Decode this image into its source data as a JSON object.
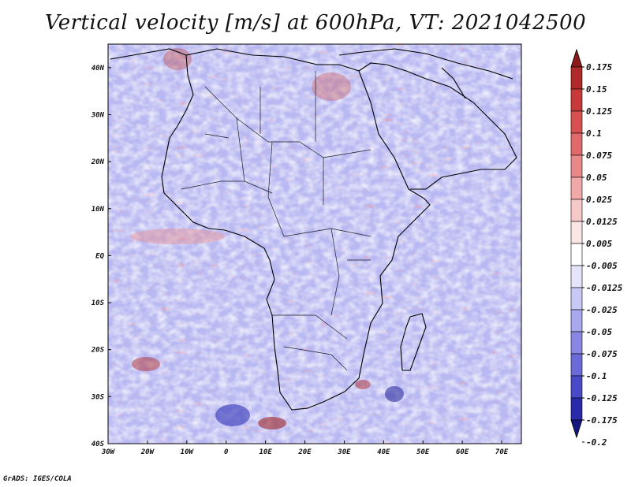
{
  "title": "Vertical velocity [m/s] at 600hPa, VT: 2021042500",
  "footer": "GrADS: IGES/COLA",
  "map": {
    "region": "Africa",
    "lon_labels": [
      "30W",
      "20W",
      "10W",
      "0",
      "10E",
      "20E",
      "30E",
      "40E",
      "50E",
      "60E",
      "70E"
    ],
    "lat_labels": [
      "40N",
      "30N",
      "20N",
      "10N",
      "EQ",
      "10S",
      "20S",
      "30S",
      "40S"
    ],
    "lon_range": [
      -30,
      75
    ],
    "lat_range": [
      -40,
      45
    ]
  },
  "colorbar": {
    "labels": [
      "0.175",
      "0.15",
      "0.125",
      "0.1",
      "0.075",
      "0.05",
      "0.025",
      "0.0125",
      "0.005",
      "-0.005",
      "-0.0125",
      "-0.025",
      "-0.05",
      "-0.075",
      "-0.1",
      "-0.125",
      "-0.175",
      "-0.2"
    ],
    "colors": [
      "#8b1a1a",
      "#b02a2a",
      "#c83a3a",
      "#d85050",
      "#e06a6a",
      "#e88888",
      "#f0a8a8",
      "#f6c8c8",
      "#fbe6e6",
      "#ffffff",
      "#e4e4fb",
      "#c8c8f4",
      "#a8a8ee",
      "#8888e4",
      "#6a6ad8",
      "#4a4ac8",
      "#2a2aaa",
      "#161680"
    ]
  }
}
